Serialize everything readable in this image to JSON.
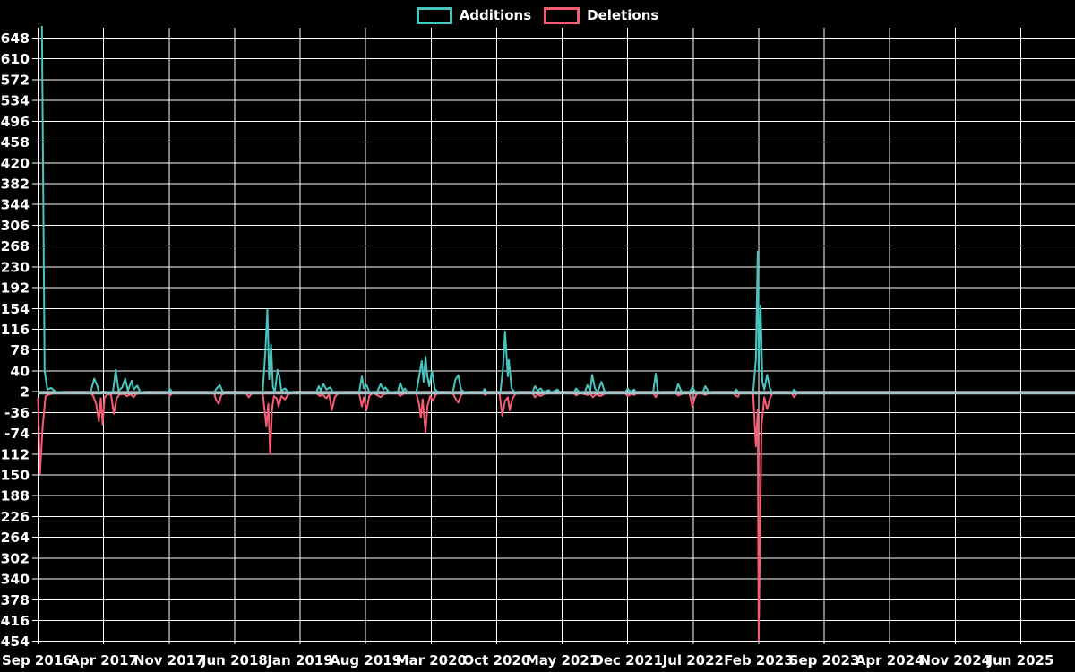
{
  "legend": {
    "items": [
      {
        "label": "Additions",
        "color": "#48c5bf"
      },
      {
        "label": "Deletions",
        "color": "#f75c75"
      }
    ]
  },
  "colors": {
    "background": "#000000",
    "grid": "#ffffff",
    "text": "#ffffff",
    "additions": "#48c5bf",
    "deletions": "#f75c75",
    "baseline_line": "#a9c2c6"
  },
  "chart_data": {
    "type": "line",
    "title": "",
    "legend_position": "top-center",
    "grid": true,
    "x_axis": {
      "unit": "months since Sep 2016",
      "tick_interval_months": 7,
      "tick_labels": [
        "Sep 2016",
        "Apr 2017",
        "Nov 2017",
        "Jun 2018",
        "Jan 2019",
        "Aug 2019",
        "Mar 2020",
        "Oct 2020",
        "May 2021",
        "Dec 2021",
        "Jul 2022",
        "Feb 2023",
        "Sep 2023",
        "Apr 2024",
        "Nov 2024",
        "Jun 2025"
      ]
    },
    "y_axis": {
      "min": -454,
      "max": 648,
      "step": 38,
      "ticks": [
        648,
        610,
        572,
        534,
        496,
        458,
        420,
        382,
        344,
        306,
        268,
        230,
        192,
        154,
        116,
        78,
        40,
        2,
        -36,
        -74,
        -112,
        -150,
        -188,
        -226,
        -264,
        -302,
        -340,
        -378,
        -416,
        -454
      ]
    },
    "baseline_value": 0,
    "series": [
      {
        "name": "Additions",
        "color": "#48c5bf",
        "points": [
          [
            0,
            695
          ],
          [
            0.4,
            695
          ],
          [
            0.7,
            40
          ],
          [
            1.0,
            6
          ],
          [
            1.4,
            9
          ],
          [
            1.9,
            2
          ],
          [
            3.2,
            0
          ],
          [
            5.6,
            0
          ],
          [
            6.0,
            26
          ],
          [
            6.3,
            14
          ],
          [
            6.5,
            2
          ],
          [
            6.8,
            0
          ],
          [
            8.0,
            2
          ],
          [
            8.3,
            42
          ],
          [
            8.6,
            4
          ],
          [
            9.0,
            10
          ],
          [
            9.3,
            26
          ],
          [
            9.6,
            4
          ],
          [
            10.0,
            22
          ],
          [
            10.2,
            6
          ],
          [
            10.6,
            13
          ],
          [
            10.9,
            2
          ],
          [
            11.8,
            0
          ],
          [
            13.8,
            0
          ],
          [
            14.1,
            7
          ],
          [
            14.4,
            0
          ],
          [
            18.8,
            0
          ],
          [
            19.0,
            6
          ],
          [
            19.4,
            14
          ],
          [
            19.7,
            3
          ],
          [
            20.1,
            0
          ],
          [
            24.0,
            0
          ],
          [
            24.3,
            80
          ],
          [
            24.5,
            152
          ],
          [
            24.7,
            25
          ],
          [
            24.9,
            88
          ],
          [
            25.1,
            10
          ],
          [
            25.3,
            2
          ],
          [
            25.6,
            42
          ],
          [
            25.8,
            30
          ],
          [
            26.0,
            4
          ],
          [
            26.4,
            8
          ],
          [
            26.7,
            2
          ],
          [
            27.6,
            0
          ],
          [
            29.7,
            0
          ],
          [
            30.0,
            12
          ],
          [
            30.2,
            4
          ],
          [
            30.5,
            16
          ],
          [
            30.8,
            6
          ],
          [
            31.2,
            10
          ],
          [
            31.5,
            2
          ],
          [
            31.9,
            0
          ],
          [
            34.3,
            0
          ],
          [
            34.6,
            30
          ],
          [
            34.8,
            8
          ],
          [
            35.1,
            14
          ],
          [
            35.4,
            2
          ],
          [
            36.2,
            0
          ],
          [
            36.6,
            16
          ],
          [
            36.9,
            6
          ],
          [
            37.1,
            10
          ],
          [
            37.5,
            2
          ],
          [
            38.4,
            0
          ],
          [
            38.7,
            18
          ],
          [
            39.0,
            4
          ],
          [
            39.2,
            8
          ],
          [
            39.5,
            0
          ],
          [
            40.4,
            0
          ],
          [
            40.7,
            28
          ],
          [
            41.0,
            58
          ],
          [
            41.2,
            20
          ],
          [
            41.4,
            66
          ],
          [
            41.6,
            30
          ],
          [
            41.8,
            12
          ],
          [
            42.1,
            40
          ],
          [
            42.4,
            6
          ],
          [
            42.9,
            0
          ],
          [
            44.3,
            0
          ],
          [
            44.6,
            24
          ],
          [
            44.9,
            32
          ],
          [
            45.2,
            6
          ],
          [
            45.5,
            2
          ],
          [
            46.5,
            0
          ],
          [
            47.5,
            0
          ],
          [
            47.7,
            7
          ],
          [
            48.0,
            0
          ],
          [
            49.4,
            0
          ],
          [
            49.7,
            50
          ],
          [
            49.9,
            112
          ],
          [
            50.2,
            30
          ],
          [
            50.3,
            60
          ],
          [
            50.6,
            8
          ],
          [
            50.9,
            2
          ],
          [
            51.5,
            0
          ],
          [
            52.8,
            0
          ],
          [
            53.1,
            12
          ],
          [
            53.4,
            4
          ],
          [
            53.7,
            8
          ],
          [
            54.0,
            2
          ],
          [
            54.6,
            5
          ],
          [
            54.8,
            0
          ],
          [
            55.5,
            6
          ],
          [
            55.8,
            0
          ],
          [
            57.2,
            0
          ],
          [
            57.5,
            8
          ],
          [
            57.8,
            2
          ],
          [
            58.4,
            0
          ],
          [
            58.7,
            14
          ],
          [
            59.0,
            4
          ],
          [
            59.2,
            33
          ],
          [
            59.5,
            8
          ],
          [
            59.8,
            2
          ],
          [
            60.2,
            20
          ],
          [
            60.5,
            4
          ],
          [
            60.9,
            0
          ],
          [
            62.7,
            0
          ],
          [
            63.0,
            8
          ],
          [
            63.3,
            2
          ],
          [
            63.7,
            6
          ],
          [
            63.9,
            0
          ],
          [
            65.7,
            0
          ],
          [
            66.0,
            35
          ],
          [
            66.2,
            4
          ],
          [
            66.5,
            0
          ],
          [
            68.1,
            0
          ],
          [
            68.4,
            16
          ],
          [
            68.7,
            4
          ],
          [
            69.0,
            0
          ],
          [
            69.6,
            0
          ],
          [
            69.9,
            10
          ],
          [
            70.2,
            3
          ],
          [
            70.4,
            0
          ],
          [
            71.0,
            0
          ],
          [
            71.3,
            12
          ],
          [
            71.6,
            3
          ],
          [
            72.0,
            0
          ],
          [
            74.3,
            0
          ],
          [
            74.6,
            6
          ],
          [
            74.9,
            0
          ],
          [
            76.4,
            0
          ],
          [
            76.7,
            60
          ],
          [
            76.9,
            258
          ],
          [
            77.0,
            40
          ],
          [
            77.2,
            160
          ],
          [
            77.4,
            20
          ],
          [
            77.6,
            6
          ],
          [
            77.9,
            33
          ],
          [
            78.2,
            8
          ],
          [
            78.5,
            0
          ],
          [
            80.5,
            0
          ],
          [
            80.8,
            6
          ],
          [
            81.1,
            0
          ],
          [
            110.8,
            0
          ]
        ]
      },
      {
        "name": "Deletions",
        "color": "#f75c75",
        "points": [
          [
            0,
            -10
          ],
          [
            0.2,
            -148
          ],
          [
            0.5,
            -60
          ],
          [
            0.8,
            -6
          ],
          [
            1.2,
            -3
          ],
          [
            1.9,
            0
          ],
          [
            5.6,
            0
          ],
          [
            5.9,
            -6
          ],
          [
            6.2,
            -20
          ],
          [
            6.5,
            -52
          ],
          [
            6.7,
            -10
          ],
          [
            6.9,
            -58
          ],
          [
            7.1,
            -8
          ],
          [
            7.5,
            -2
          ],
          [
            7.8,
            -4
          ],
          [
            8.1,
            -38
          ],
          [
            8.4,
            -10
          ],
          [
            8.7,
            -3
          ],
          [
            9.1,
            -2
          ],
          [
            9.5,
            -6
          ],
          [
            9.9,
            -3
          ],
          [
            10.2,
            -8
          ],
          [
            10.5,
            -2
          ],
          [
            11.1,
            0
          ],
          [
            13.8,
            0
          ],
          [
            14.1,
            -5
          ],
          [
            14.4,
            0
          ],
          [
            18.8,
            0
          ],
          [
            19.0,
            -12
          ],
          [
            19.3,
            -20
          ],
          [
            19.6,
            -4
          ],
          [
            20.0,
            0
          ],
          [
            22.2,
            0
          ],
          [
            22.5,
            -8
          ],
          [
            22.8,
            -2
          ],
          [
            23.2,
            0
          ],
          [
            24.0,
            0
          ],
          [
            24.2,
            -30
          ],
          [
            24.4,
            -62
          ],
          [
            24.6,
            -20
          ],
          [
            24.8,
            -112
          ],
          [
            25.0,
            -30
          ],
          [
            25.2,
            -6
          ],
          [
            25.5,
            -10
          ],
          [
            25.7,
            -25
          ],
          [
            26.0,
            -6
          ],
          [
            26.4,
            -12
          ],
          [
            26.7,
            -3
          ],
          [
            27.2,
            0
          ],
          [
            29.7,
            0
          ],
          [
            30.1,
            -6
          ],
          [
            30.4,
            -3
          ],
          [
            30.8,
            -10
          ],
          [
            31.1,
            -3
          ],
          [
            31.4,
            -32
          ],
          [
            31.7,
            -8
          ],
          [
            32.1,
            0
          ],
          [
            34.3,
            0
          ],
          [
            34.6,
            -25
          ],
          [
            34.8,
            -8
          ],
          [
            35.1,
            -32
          ],
          [
            35.4,
            -6
          ],
          [
            35.8,
            0
          ],
          [
            36.6,
            -8
          ],
          [
            36.9,
            -3
          ],
          [
            37.5,
            0
          ],
          [
            38.4,
            0
          ],
          [
            38.7,
            -6
          ],
          [
            39.0,
            -2
          ],
          [
            39.5,
            0
          ],
          [
            40.4,
            0
          ],
          [
            40.7,
            -20
          ],
          [
            40.9,
            -45
          ],
          [
            41.1,
            -12
          ],
          [
            41.4,
            -72
          ],
          [
            41.6,
            -25
          ],
          [
            41.9,
            -6
          ],
          [
            42.2,
            -15
          ],
          [
            42.5,
            -3
          ],
          [
            42.9,
            0
          ],
          [
            44.3,
            0
          ],
          [
            44.6,
            -10
          ],
          [
            44.9,
            -18
          ],
          [
            45.2,
            -4
          ],
          [
            45.6,
            0
          ],
          [
            47.5,
            0
          ],
          [
            47.8,
            -4
          ],
          [
            48.0,
            0
          ],
          [
            49.3,
            0
          ],
          [
            49.6,
            -42
          ],
          [
            49.9,
            -15
          ],
          [
            50.2,
            -8
          ],
          [
            50.4,
            -32
          ],
          [
            50.7,
            -10
          ],
          [
            51.0,
            -2
          ],
          [
            51.5,
            0
          ],
          [
            52.8,
            0
          ],
          [
            53.1,
            -8
          ],
          [
            53.4,
            -3
          ],
          [
            53.7,
            -6
          ],
          [
            54.1,
            -2
          ],
          [
            54.6,
            0
          ],
          [
            57.2,
            0
          ],
          [
            57.5,
            -5
          ],
          [
            57.9,
            0
          ],
          [
            58.7,
            -4
          ],
          [
            59.0,
            -2
          ],
          [
            59.3,
            -8
          ],
          [
            59.6,
            -3
          ],
          [
            60.1,
            -6
          ],
          [
            60.5,
            -2
          ],
          [
            60.9,
            0
          ],
          [
            62.7,
            0
          ],
          [
            63.0,
            -6
          ],
          [
            63.4,
            -2
          ],
          [
            63.7,
            -4
          ],
          [
            64.0,
            0
          ],
          [
            65.7,
            0
          ],
          [
            66.0,
            -8
          ],
          [
            66.2,
            -2
          ],
          [
            66.6,
            0
          ],
          [
            68.1,
            0
          ],
          [
            68.4,
            -5
          ],
          [
            68.8,
            -2
          ],
          [
            69.1,
            0
          ],
          [
            69.6,
            0
          ],
          [
            69.9,
            -25
          ],
          [
            70.2,
            -8
          ],
          [
            70.4,
            -2
          ],
          [
            70.8,
            0
          ],
          [
            71.3,
            -4
          ],
          [
            71.7,
            0
          ],
          [
            74.3,
            0
          ],
          [
            74.5,
            -5
          ],
          [
            74.8,
            -7
          ],
          [
            75.0,
            0
          ],
          [
            76.4,
            0
          ],
          [
            76.7,
            -98
          ],
          [
            76.9,
            -30
          ],
          [
            77.0,
            -452
          ],
          [
            77.3,
            -60
          ],
          [
            77.6,
            -8
          ],
          [
            77.9,
            -30
          ],
          [
            78.2,
            -10
          ],
          [
            78.5,
            0
          ],
          [
            80.5,
            0
          ],
          [
            80.8,
            -8
          ],
          [
            81.1,
            0
          ],
          [
            110.8,
            0
          ]
        ]
      }
    ]
  }
}
